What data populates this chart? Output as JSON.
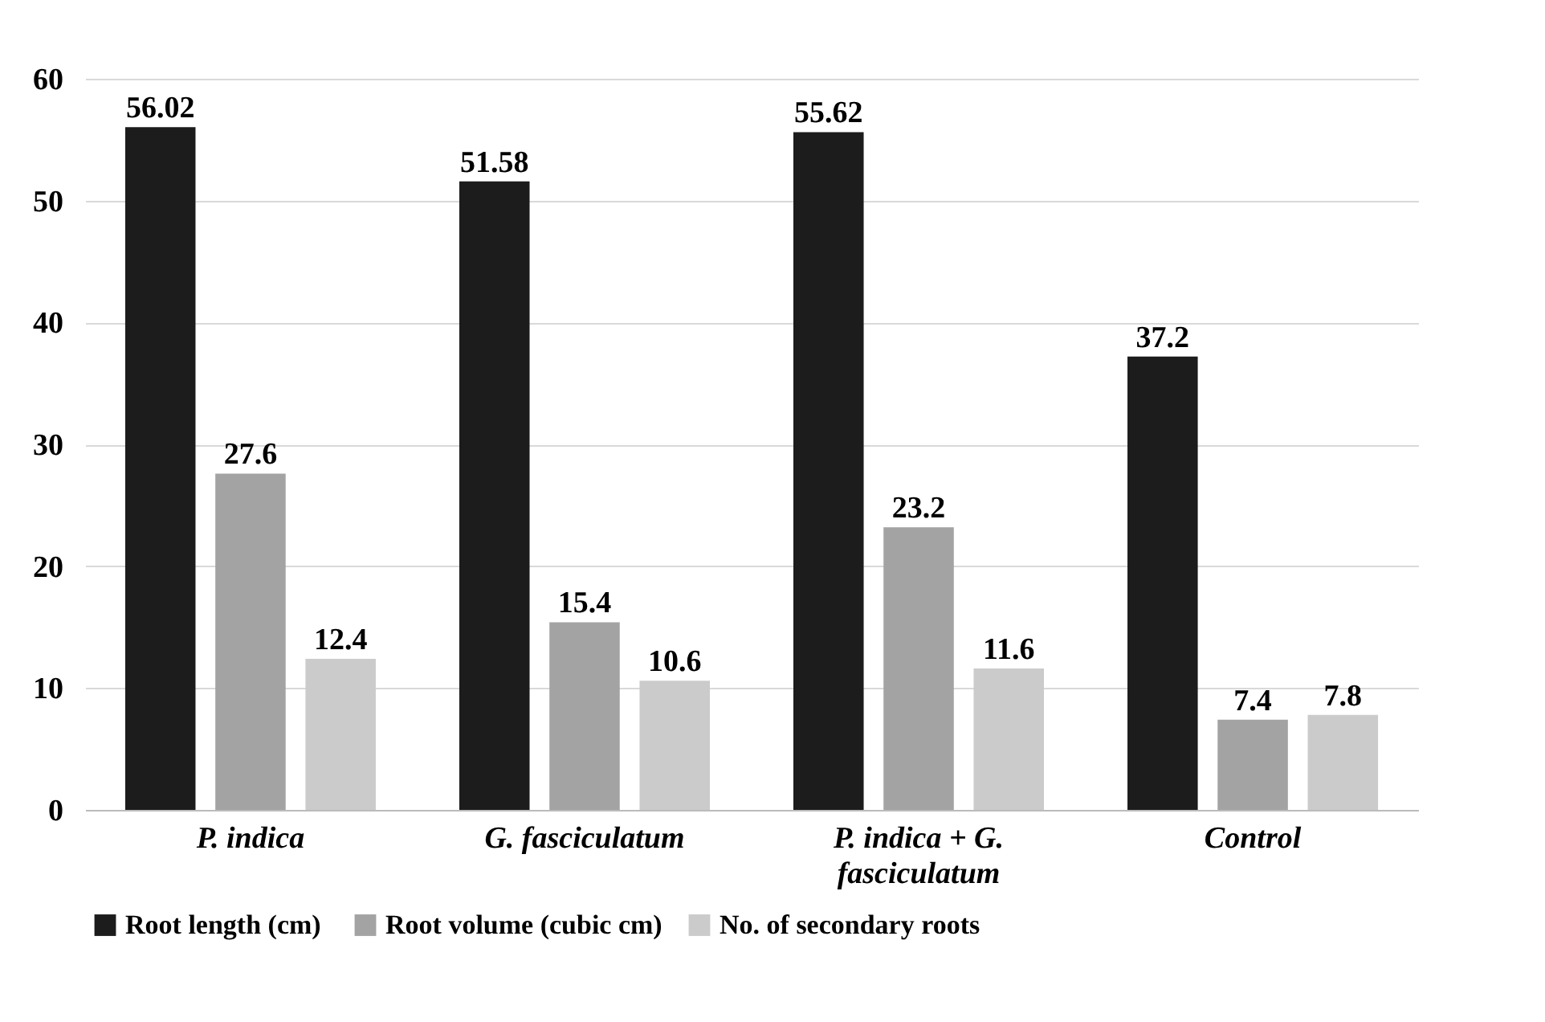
{
  "chart_data": {
    "type": "bar",
    "categories": [
      "P. indica",
      "G. fasciculatum",
      "P. indica + G. fasciculatum",
      "Control"
    ],
    "series": [
      {
        "name": "Root length  (cm)",
        "color": "#1c1c1c",
        "values": [
          56.02,
          51.58,
          55.62,
          37.2
        ]
      },
      {
        "name": "Root volume (cubic cm)",
        "color": "#a3a3a3",
        "values": [
          27.6,
          15.4,
          23.2,
          7.4
        ]
      },
      {
        "name": "No. of secondary roots",
        "color": "#cbcbcb",
        "values": [
          12.4,
          10.6,
          11.6,
          7.8
        ]
      }
    ],
    "ylim": [
      0,
      60
    ],
    "yticks": [
      0,
      10,
      20,
      30,
      40,
      50,
      60
    ],
    "grid": "y",
    "legend": "bottom",
    "data_labels": true
  }
}
